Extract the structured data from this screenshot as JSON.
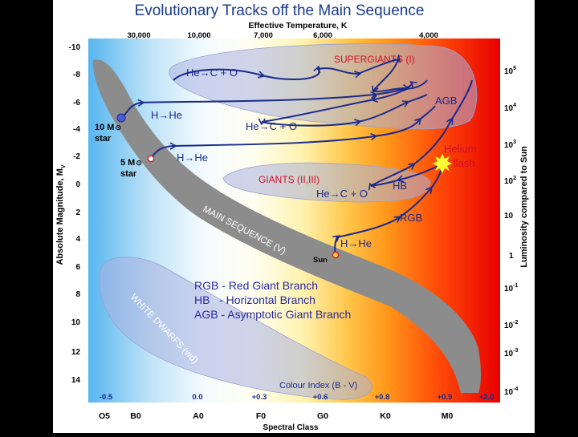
{
  "title": "Evolutionary Tracks off the Main Sequence",
  "top_axis": {
    "label": "Effective Temperature, K",
    "ticks": [
      "30,000",
      "10,000",
      "7,000",
      "6,000",
      "4,000"
    ]
  },
  "left_axis": {
    "label": "Absolute Magnitude, M",
    "label_sub": "V",
    "ticks": [
      "-10",
      "-8",
      "-6",
      "-4",
      "-2",
      "0",
      "2",
      "4",
      "6",
      "8",
      "10",
      "12",
      "14"
    ]
  },
  "right_axis": {
    "label": "Luminosity compared to Sun",
    "ticks": [
      {
        "base": "10",
        "exp": "5"
      },
      {
        "base": "10",
        "exp": "4"
      },
      {
        "base": "10",
        "exp": "3"
      },
      {
        "base": "10",
        "exp": "2"
      },
      {
        "base": "10",
        "exp": ""
      },
      {
        "base": "1",
        "exp": ""
      },
      {
        "base": "10",
        "exp": "-1"
      },
      {
        "base": "10",
        "exp": "-2"
      },
      {
        "base": "10",
        "exp": "-3"
      },
      {
        "base": "10",
        "exp": "-4"
      }
    ]
  },
  "colour_index": {
    "label": "Colour Index (B - V)",
    "values": [
      "-0.5",
      "0.0",
      "+0.3",
      "+0.6",
      "+0.8",
      "+0.9",
      "+2.0"
    ]
  },
  "spectral": {
    "label": "Spectral Class",
    "classes": [
      "O5",
      "B0",
      "A0",
      "F0",
      "G0",
      "K0",
      "M0"
    ]
  },
  "regions": {
    "supergiants": "SUPERGIANTS (I)",
    "giants": "GIANTS (II,III)",
    "main_sequence": "MAIN SEQUENCE (V)",
    "white_dwarfs": "WHITE DWARFS (wd)"
  },
  "stars": {
    "ten": {
      "mass": "10 M",
      "word": "star"
    },
    "five": {
      "mass": "5 M",
      "word": "star"
    },
    "sun": "Sun"
  },
  "track_labels": {
    "he_c_o_top": "He→C + O",
    "h_he_10": "H→He",
    "he_c_o_mid": "He→C + O",
    "h_he_5": "H→He",
    "he_c_o_giants": "He→C + O",
    "h_he_sun": "H→He",
    "agb": "AGB",
    "hb": "HB",
    "rgb": "RGB",
    "helium_flash_1": "Helium",
    "helium_flash_2": "flash"
  },
  "legend": [
    "RGB - Red Giant Branch",
    "HB   - Horizontal Branch",
    "AGB - Asymptotic Giant Branch"
  ],
  "colors": {
    "track": "#1a2a8c",
    "region_label": "#d0102a",
    "legend_text": "#2a2aa0",
    "title": "#1a3a8c",
    "main_sequence": "#8c8c8c"
  }
}
